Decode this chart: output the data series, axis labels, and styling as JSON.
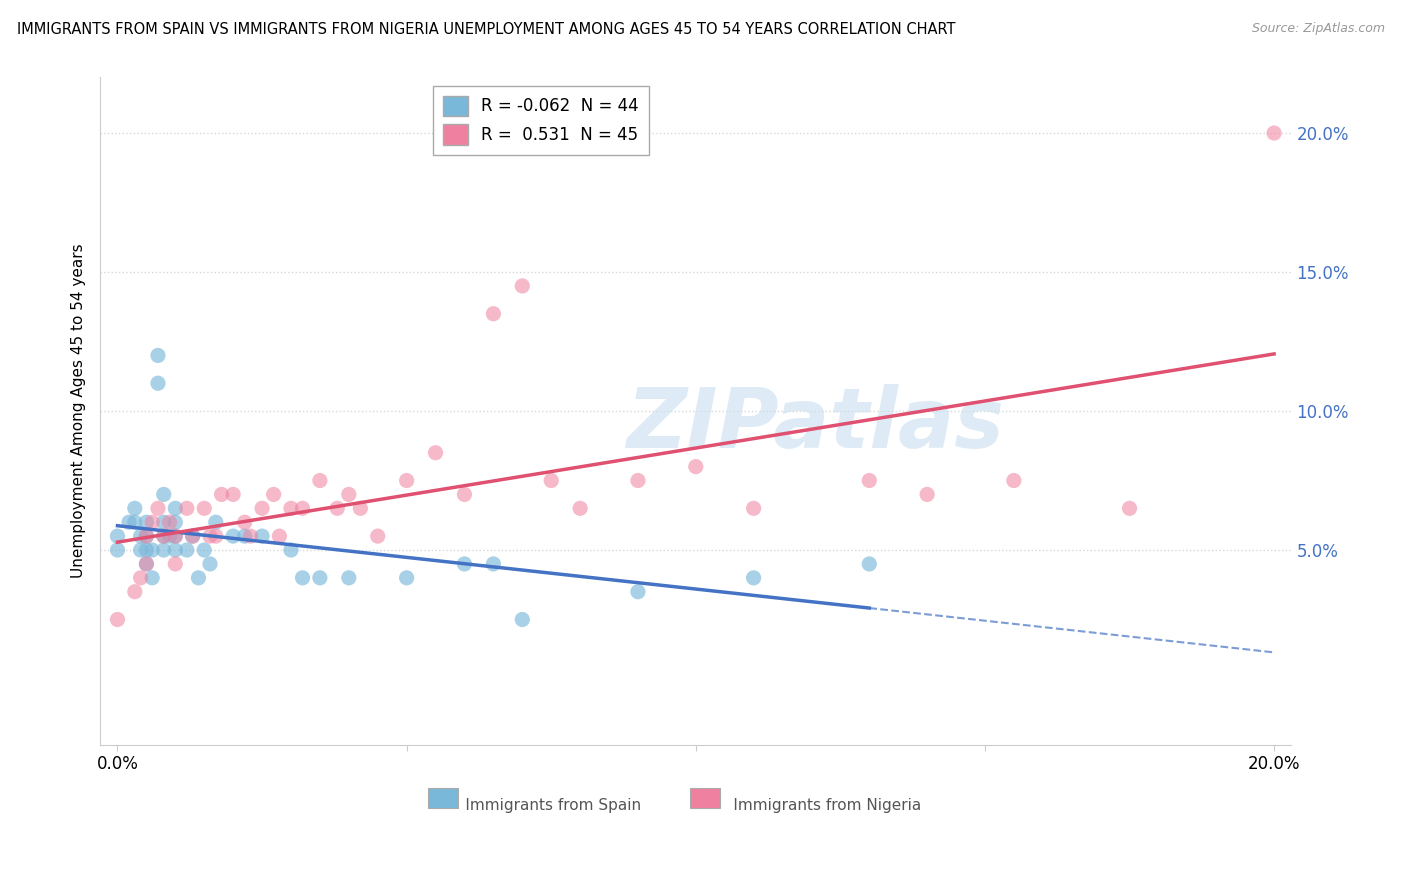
{
  "title": "IMMIGRANTS FROM SPAIN VS IMMIGRANTS FROM NIGERIA UNEMPLOYMENT AMONG AGES 45 TO 54 YEARS CORRELATION CHART",
  "source": "Source: ZipAtlas.com",
  "ylabel": "Unemployment Among Ages 45 to 54 years",
  "xlim": [
    0.0,
    0.2
  ],
  "ylim": [
    -0.02,
    0.22
  ],
  "yticks": [
    0.05,
    0.1,
    0.15,
    0.2
  ],
  "ytick_labels": [
    "5.0%",
    "10.0%",
    "15.0%",
    "20.0%"
  ],
  "legend_r_spain": "-0.062",
  "legend_n_spain": "44",
  "legend_r_nigeria": "0.531",
  "legend_n_nigeria": "45",
  "color_spain": "#7ab8d9",
  "color_nigeria": "#f080a0",
  "line_color_spain": "#4472c4",
  "line_color_nigeria": "#e05070",
  "watermark": "ZIPatlas",
  "background_color": "#ffffff",
  "grid_color": "#d8d8d8",
  "spain_x": [
    0.0,
    0.0,
    0.002,
    0.003,
    0.003,
    0.004,
    0.004,
    0.005,
    0.005,
    0.005,
    0.005,
    0.006,
    0.006,
    0.007,
    0.007,
    0.008,
    0.008,
    0.008,
    0.008,
    0.009,
    0.01,
    0.01,
    0.01,
    0.01,
    0.012,
    0.013,
    0.014,
    0.015,
    0.016,
    0.017,
    0.02,
    0.022,
    0.025,
    0.03,
    0.032,
    0.035,
    0.04,
    0.05,
    0.06,
    0.065,
    0.07,
    0.09,
    0.11,
    0.13
  ],
  "spain_y": [
    0.055,
    0.05,
    0.06,
    0.065,
    0.06,
    0.055,
    0.05,
    0.06,
    0.055,
    0.05,
    0.045,
    0.05,
    0.04,
    0.12,
    0.11,
    0.07,
    0.06,
    0.055,
    0.05,
    0.055,
    0.065,
    0.06,
    0.055,
    0.05,
    0.05,
    0.055,
    0.04,
    0.05,
    0.045,
    0.06,
    0.055,
    0.055,
    0.055,
    0.05,
    0.04,
    0.04,
    0.04,
    0.04,
    0.045,
    0.045,
    0.025,
    0.035,
    0.04,
    0.045
  ],
  "nigeria_x": [
    0.0,
    0.003,
    0.004,
    0.005,
    0.005,
    0.006,
    0.007,
    0.008,
    0.009,
    0.01,
    0.01,
    0.012,
    0.013,
    0.015,
    0.016,
    0.017,
    0.018,
    0.02,
    0.022,
    0.023,
    0.025,
    0.027,
    0.028,
    0.03,
    0.032,
    0.035,
    0.038,
    0.04,
    0.042,
    0.045,
    0.05,
    0.055,
    0.06,
    0.065,
    0.07,
    0.075,
    0.08,
    0.09,
    0.1,
    0.11,
    0.13,
    0.14,
    0.155,
    0.175,
    0.2
  ],
  "nigeria_y": [
    0.025,
    0.035,
    0.04,
    0.055,
    0.045,
    0.06,
    0.065,
    0.055,
    0.06,
    0.055,
    0.045,
    0.065,
    0.055,
    0.065,
    0.055,
    0.055,
    0.07,
    0.07,
    0.06,
    0.055,
    0.065,
    0.07,
    0.055,
    0.065,
    0.065,
    0.075,
    0.065,
    0.07,
    0.065,
    0.055,
    0.075,
    0.085,
    0.07,
    0.135,
    0.145,
    0.075,
    0.065,
    0.075,
    0.08,
    0.065,
    0.075,
    0.07,
    0.075,
    0.065,
    0.2
  ]
}
